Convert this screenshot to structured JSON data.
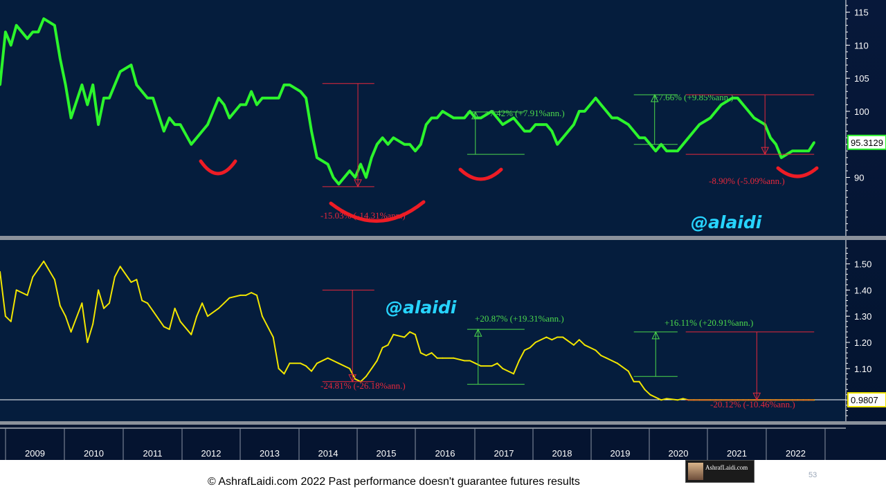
{
  "colors": {
    "background": "#051d3d",
    "series_top": "#2cf52c",
    "series_bottom": "#f2e600",
    "gain": "#4cd94c",
    "loss": "#e8283c",
    "watermark": "#27d4ff"
  },
  "watermark_top": "@alaidi",
  "watermark_bottom": "@alaidi",
  "footer": "© AshrafLaidi.com 2022 Past performance doesn't guarantee futures results",
  "slide_number": "53",
  "logo_text": "AshrafLaidi.com",
  "years": [
    "2009",
    "2010",
    "2011",
    "2012",
    "2013",
    "2014",
    "2015",
    "2016",
    "2017",
    "2018",
    "2019",
    "2020",
    "2021",
    "2022"
  ],
  "chart_data": [
    {
      "type": "line",
      "panel": "top",
      "ylim": [
        82,
        116
      ],
      "yticks": [
        90,
        95,
        100,
        105,
        110,
        115
      ],
      "ytick_labels": [
        "90",
        "",
        "100",
        "105",
        "110",
        "115"
      ],
      "last_value": 95.31,
      "last_value_label": "95.3129",
      "x": [
        2008.0,
        2008.1,
        2008.2,
        2008.3,
        2008.5,
        2008.6,
        2008.7,
        2008.8,
        2009.0,
        2009.1,
        2009.2,
        2009.3,
        2009.5,
        2009.6,
        2009.7,
        2009.8,
        2009.9,
        2010.0,
        2010.1,
        2010.2,
        2010.4,
        2010.5,
        2010.6,
        2010.7,
        2010.8,
        2011.0,
        2011.1,
        2011.2,
        2011.3,
        2011.5,
        2011.6,
        2011.7,
        2011.8,
        2012.0,
        2012.1,
        2012.2,
        2012.4,
        2012.5,
        2012.6,
        2012.7,
        2012.8,
        2013.0,
        2013.1,
        2013.2,
        2013.3,
        2013.5,
        2013.6,
        2013.7,
        2013.8,
        2014.0,
        2014.1,
        2014.2,
        2014.4,
        2014.5,
        2014.6,
        2014.7,
        2014.8,
        2014.9,
        2015.0,
        2015.1,
        2015.2,
        2015.4,
        2015.5,
        2015.6,
        2015.7,
        2015.8,
        2015.9,
        2016.0,
        2016.1,
        2016.3,
        2016.5,
        2016.6,
        2016.7,
        2016.8,
        2017.0,
        2017.1,
        2017.2,
        2017.4,
        2017.5,
        2017.6,
        2017.7,
        2017.8,
        2018.0,
        2018.1,
        2018.2,
        2018.3,
        2018.5,
        2018.6,
        2018.7,
        2018.9,
        2019.0,
        2019.1,
        2019.2,
        2019.3,
        2019.5,
        2019.6,
        2019.7,
        2019.8,
        2019.9,
        2020.0,
        2020.1,
        2020.2,
        2020.4,
        2020.5,
        2020.6,
        2020.7,
        2020.8,
        2021.0,
        2021.1,
        2021.2,
        2021.4,
        2021.5,
        2021.6,
        2021.7,
        2021.8,
        2022.0,
        2022.1,
        2022.2,
        2022.3,
        2022.5,
        2022.6,
        2022.7,
        2022.8,
        2022.9
      ],
      "y": [
        104,
        112,
        110,
        113,
        111,
        112,
        112,
        114,
        113,
        108,
        104,
        99,
        104,
        101,
        104,
        98,
        102,
        102,
        104,
        106,
        107,
        104,
        103,
        102,
        102,
        97,
        99,
        98,
        98,
        95,
        96,
        97,
        98,
        102,
        101,
        99,
        101,
        101,
        103,
        101,
        102,
        102,
        102,
        104,
        104,
        103,
        102,
        97,
        93,
        92,
        90,
        89,
        91,
        90,
        92,
        90,
        93,
        95,
        96,
        95,
        96,
        95,
        95,
        94,
        95,
        98,
        99,
        99,
        100,
        99,
        99,
        100,
        99,
        99,
        100,
        99,
        98,
        99,
        98,
        97,
        97,
        98,
        98,
        97,
        95,
        96,
        98,
        100,
        100,
        102,
        101,
        100,
        99,
        99,
        98,
        97,
        96,
        96,
        95,
        94,
        95,
        94,
        94,
        95,
        96,
        97,
        98,
        99,
        100,
        101,
        102,
        102,
        101,
        100,
        99,
        98,
        96,
        95,
        93,
        94,
        94,
        94,
        94,
        95.3
      ],
      "annotations": [
        {
          "text": "-15.03% (-14.31%ann.)",
          "kind": "loss"
        },
        {
          "text": "+7.42% (+7.91%ann.)",
          "kind": "gain"
        },
        {
          "text": "+7.66% (+9.85%ann.)",
          "kind": "gain"
        },
        {
          "text": "-8.90% (-5.09%ann.)",
          "kind": "loss"
        }
      ]
    },
    {
      "type": "line",
      "panel": "bottom",
      "ylim": [
        0.92,
        1.57
      ],
      "yticks": [
        1.1,
        1.2,
        1.3,
        1.4,
        1.5
      ],
      "ytick_labels": [
        "1.10",
        "1.20",
        "1.30",
        "1.40",
        "1.50"
      ],
      "last_value": 0.9807,
      "last_value_label": "0.9807",
      "x": [
        2008.0,
        2008.1,
        2008.2,
        2008.3,
        2008.5,
        2008.6,
        2008.7,
        2008.8,
        2009.0,
        2009.1,
        2009.2,
        2009.3,
        2009.5,
        2009.6,
        2009.7,
        2009.8,
        2009.9,
        2010.0,
        2010.1,
        2010.2,
        2010.4,
        2010.5,
        2010.6,
        2010.7,
        2010.8,
        2011.0,
        2011.1,
        2011.2,
        2011.3,
        2011.5,
        2011.6,
        2011.7,
        2011.8,
        2012.0,
        2012.1,
        2012.2,
        2012.4,
        2012.5,
        2012.6,
        2012.7,
        2012.8,
        2013.0,
        2013.1,
        2013.2,
        2013.3,
        2013.5,
        2013.6,
        2013.7,
        2013.8,
        2014.0,
        2014.1,
        2014.2,
        2014.4,
        2014.5,
        2014.6,
        2014.7,
        2014.8,
        2014.9,
        2015.0,
        2015.1,
        2015.2,
        2015.4,
        2015.5,
        2015.6,
        2015.7,
        2015.8,
        2015.9,
        2016.0,
        2016.1,
        2016.3,
        2016.5,
        2016.6,
        2016.7,
        2016.8,
        2017.0,
        2017.1,
        2017.2,
        2017.4,
        2017.5,
        2017.6,
        2017.7,
        2017.8,
        2018.0,
        2018.1,
        2018.2,
        2018.3,
        2018.5,
        2018.6,
        2018.7,
        2018.9,
        2019.0,
        2019.1,
        2019.2,
        2019.3,
        2019.5,
        2019.6,
        2019.7,
        2019.8,
        2019.9,
        2020.0,
        2020.1,
        2020.2,
        2020.4,
        2020.5,
        2020.6,
        2020.7,
        2020.8,
        2021.0,
        2021.1,
        2021.2,
        2021.4,
        2021.5,
        2021.6,
        2021.7,
        2021.8,
        2022.0,
        2022.1,
        2022.2,
        2022.3,
        2022.5,
        2022.6,
        2022.7,
        2022.8,
        2022.9
      ],
      "y": [
        1.47,
        1.3,
        1.28,
        1.4,
        1.38,
        1.45,
        1.48,
        1.51,
        1.44,
        1.34,
        1.3,
        1.24,
        1.35,
        1.2,
        1.27,
        1.4,
        1.33,
        1.35,
        1.45,
        1.49,
        1.43,
        1.44,
        1.36,
        1.35,
        1.32,
        1.26,
        1.25,
        1.33,
        1.28,
        1.23,
        1.3,
        1.35,
        1.3,
        1.33,
        1.35,
        1.37,
        1.38,
        1.38,
        1.39,
        1.38,
        1.3,
        1.22,
        1.1,
        1.08,
        1.12,
        1.12,
        1.11,
        1.09,
        1.12,
        1.14,
        1.13,
        1.12,
        1.1,
        1.06,
        1.05,
        1.07,
        1.1,
        1.13,
        1.18,
        1.19,
        1.23,
        1.22,
        1.24,
        1.23,
        1.16,
        1.15,
        1.16,
        1.14,
        1.14,
        1.14,
        1.13,
        1.13,
        1.12,
        1.11,
        1.11,
        1.12,
        1.1,
        1.08,
        1.13,
        1.17,
        1.18,
        1.2,
        1.22,
        1.21,
        1.22,
        1.22,
        1.19,
        1.21,
        1.19,
        1.17,
        1.15,
        1.14,
        1.13,
        1.12,
        1.09,
        1.05,
        1.05,
        1.02,
        1.0,
        0.99,
        0.98,
        0.985,
        0.98,
        0.985,
        0.98,
        0.98,
        0.98,
        0.98,
        0.98,
        0.98,
        0.98,
        0.98,
        0.98,
        0.98,
        0.98,
        0.98,
        0.98,
        0.98,
        0.98,
        0.98,
        0.98,
        0.98,
        0.98,
        0.98
      ],
      "annotations": [
        {
          "text": "-24.81% (-26.18%ann.)",
          "kind": "loss"
        },
        {
          "text": "+20.87% (+19.31%ann.)",
          "kind": "gain"
        },
        {
          "text": "+16.11% (+20.91%ann.)",
          "kind": "gain"
        },
        {
          "text": "-20.12% (-10.46%ann.)",
          "kind": "loss"
        }
      ]
    }
  ]
}
